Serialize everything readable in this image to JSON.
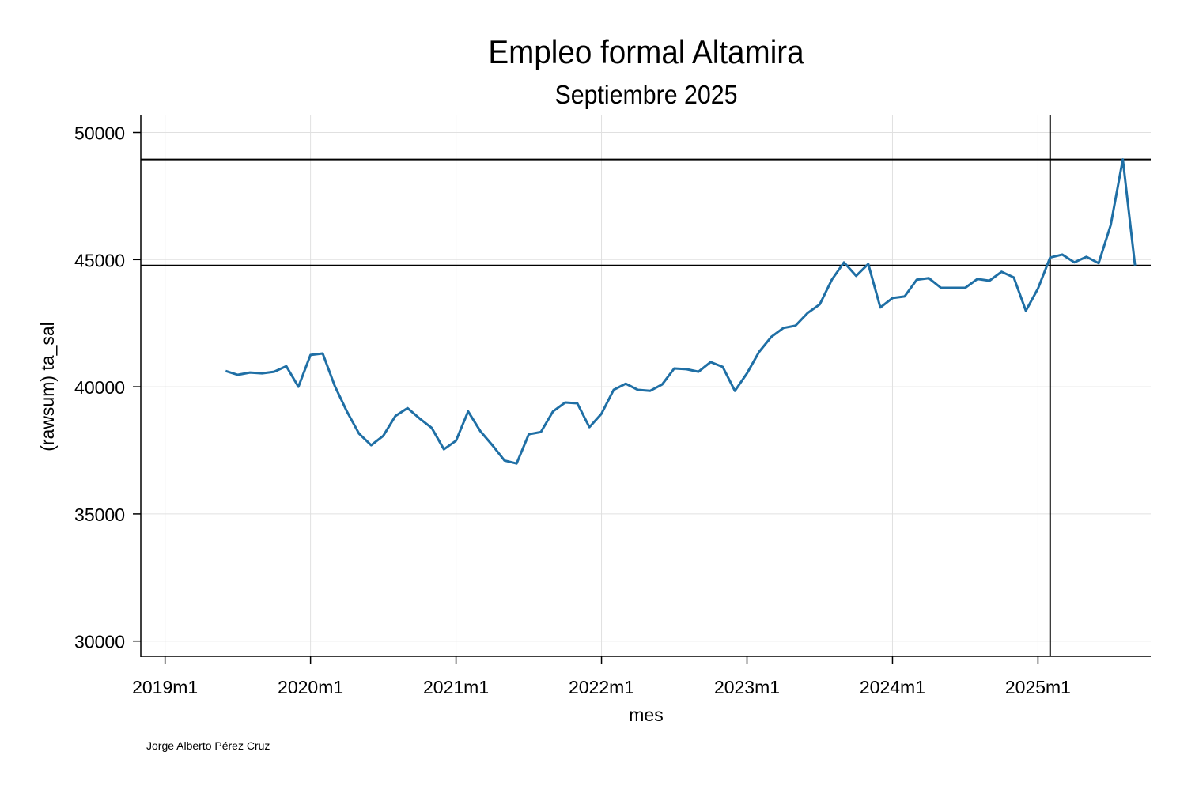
{
  "chart_data": {
    "type": "line",
    "title": "Empleo formal Altamira",
    "subtitle": "Septiembre 2025",
    "xlabel": "mes",
    "ylabel": "(rawsum) ta_sal",
    "note": "Jorge Alberto Pérez Cruz",
    "x_ticks": [
      "2019m1",
      "2020m1",
      "2021m1",
      "2022m1",
      "2023m1",
      "2024m1",
      "2025m1"
    ],
    "y_ticks": [
      30000,
      35000,
      40000,
      45000,
      50000
    ],
    "ylim": [
      29400,
      50700
    ],
    "xlim": [
      "2018m11",
      "2025m10"
    ],
    "grid": true,
    "line_color": "#1f6fa5",
    "x_start": "2019m6",
    "x_end": "2025m9",
    "values": [
      40620,
      40470,
      40560,
      40530,
      40590,
      40810,
      40000,
      41250,
      41310,
      40030,
      39030,
      38160,
      37700,
      38070,
      38850,
      39160,
      38750,
      38380,
      37540,
      37880,
      39030,
      38260,
      37700,
      37100,
      36980,
      38130,
      38220,
      39030,
      39380,
      39350,
      38410,
      38940,
      39880,
      40120,
      39880,
      39840,
      40090,
      40720,
      40690,
      40590,
      40970,
      40780,
      39840,
      40530,
      41370,
      41960,
      42310,
      42400,
      42900,
      43240,
      44210,
      44890,
      44360,
      44830,
      43120,
      43490,
      43550,
      44210,
      44270,
      43890,
      43890,
      43890,
      44240,
      44170,
      44520,
      44300,
      42990,
      43860,
      45080,
      45200,
      44890,
      45110,
      44860,
      46360,
      48940,
      44770
    ],
    "reference_lines": {
      "horizontal": [
        48940,
        44770
      ],
      "vertical": [
        "2025m2"
      ]
    }
  }
}
